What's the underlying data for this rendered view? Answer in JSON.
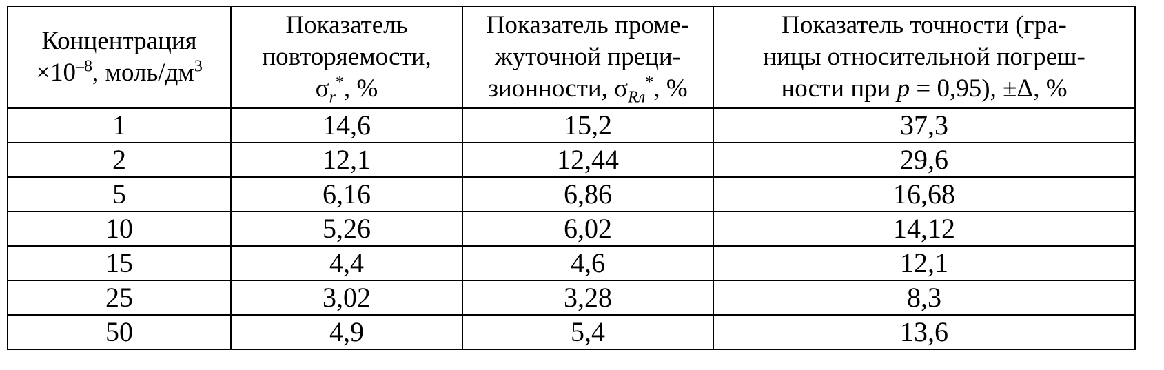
{
  "headers": {
    "col1": {
      "line1": "Концентрация",
      "prefix": "×10",
      "exp": "–8",
      "mid": ", моль/дм",
      "unit_exp": "3"
    },
    "col2": {
      "line1": "Показатель",
      "line2": "повторяемости,",
      "sym": "σ",
      "sub": "r",
      "sup": "*",
      "tail": ", %"
    },
    "col3": {
      "line1": "Показатель проме-",
      "line2": "жуточной преци-",
      "line3_pre": "зионности, σ",
      "sub": "Rл",
      "sup": "*",
      "tail": ", %"
    },
    "col4": {
      "line1": "Показатель точности (гра-",
      "line2": "ницы относительной погреш-",
      "line3_pre": "ности при ",
      "p": "p",
      "line3_post": " = 0,95), ±Δ, %"
    }
  },
  "rows": [
    [
      "1",
      "14,6",
      "15,2",
      "37,3"
    ],
    [
      "2",
      "12,1",
      "12,44",
      "29,6"
    ],
    [
      "5",
      "6,16",
      "6,86",
      "16,68"
    ],
    [
      "10",
      "5,26",
      "6,02",
      "14,12"
    ],
    [
      "15",
      "4,4",
      "4,6",
      "12,1"
    ],
    [
      "25",
      "3,02",
      "3,28",
      "8,3"
    ],
    [
      "50",
      "4,9",
      "5,4",
      "13,6"
    ]
  ]
}
